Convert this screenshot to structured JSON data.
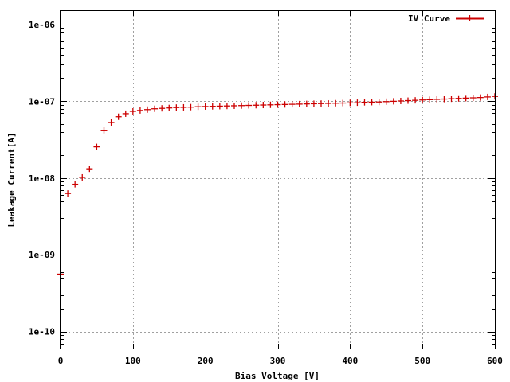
{
  "chart_data": {
    "type": "scatter",
    "title": "",
    "xlabel": "Bias Voltage [V]",
    "ylabel": "Leakage Current[A]",
    "xlim": [
      0,
      600
    ],
    "ylim": [
      6e-11,
      1.5e-06
    ],
    "yscale": "log",
    "grid": true,
    "legend_position": "top-right",
    "x_ticks": [
      {
        "value": 0,
        "label": "0"
      },
      {
        "value": 100,
        "label": "100"
      },
      {
        "value": 200,
        "label": "200"
      },
      {
        "value": 300,
        "label": "300"
      },
      {
        "value": 400,
        "label": "400"
      },
      {
        "value": 500,
        "label": "500"
      },
      {
        "value": 600,
        "label": "600"
      }
    ],
    "y_ticks": [
      {
        "value": 1e-10,
        "label": "1e-10"
      },
      {
        "value": 1e-09,
        "label": "1e-09"
      },
      {
        "value": 1e-08,
        "label": "1e-08"
      },
      {
        "value": 1e-07,
        "label": "1e-07"
      },
      {
        "value": 1e-06,
        "label": "1e-06"
      }
    ],
    "series": [
      {
        "name": "IV Curve",
        "color": "#cc0000",
        "marker": "plus",
        "x": [
          0,
          10,
          20,
          30,
          40,
          50,
          60,
          70,
          80,
          90,
          100,
          110,
          120,
          130,
          140,
          150,
          160,
          170,
          180,
          190,
          200,
          210,
          220,
          230,
          240,
          250,
          260,
          270,
          280,
          290,
          300,
          310,
          320,
          330,
          340,
          350,
          360,
          370,
          380,
          390,
          400,
          410,
          420,
          430,
          440,
          450,
          460,
          470,
          480,
          490,
          500,
          510,
          520,
          530,
          540,
          550,
          560,
          570,
          580,
          590,
          600
        ],
        "y": [
          5.6e-10,
          6.3e-09,
          8.3e-09,
          1.02e-08,
          1.32e-08,
          2.55e-08,
          4.2e-08,
          5.3e-08,
          6.3e-08,
          6.9e-08,
          7.4e-08,
          7.6e-08,
          7.8e-08,
          8e-08,
          8.1e-08,
          8.2e-08,
          8.3e-08,
          8.35e-08,
          8.4e-08,
          8.5e-08,
          8.55e-08,
          8.6e-08,
          8.65e-08,
          8.7e-08,
          8.75e-08,
          8.8e-08,
          8.85e-08,
          8.9e-08,
          8.95e-08,
          9e-08,
          9.05e-08,
          9.1e-08,
          9.15e-08,
          9.2e-08,
          9.25e-08,
          9.3e-08,
          9.35e-08,
          9.4e-08,
          9.45e-08,
          9.5e-08,
          9.55e-08,
          9.6e-08,
          9.7e-08,
          9.75e-08,
          9.8e-08,
          9.9e-08,
          1e-07,
          1.01e-07,
          1.02e-07,
          1.03e-07,
          1.04e-07,
          1.05e-07,
          1.06e-07,
          1.07e-07,
          1.08e-07,
          1.09e-07,
          1.1e-07,
          1.11e-07,
          1.12e-07,
          1.14e-07,
          1.16e-07
        ]
      }
    ]
  }
}
